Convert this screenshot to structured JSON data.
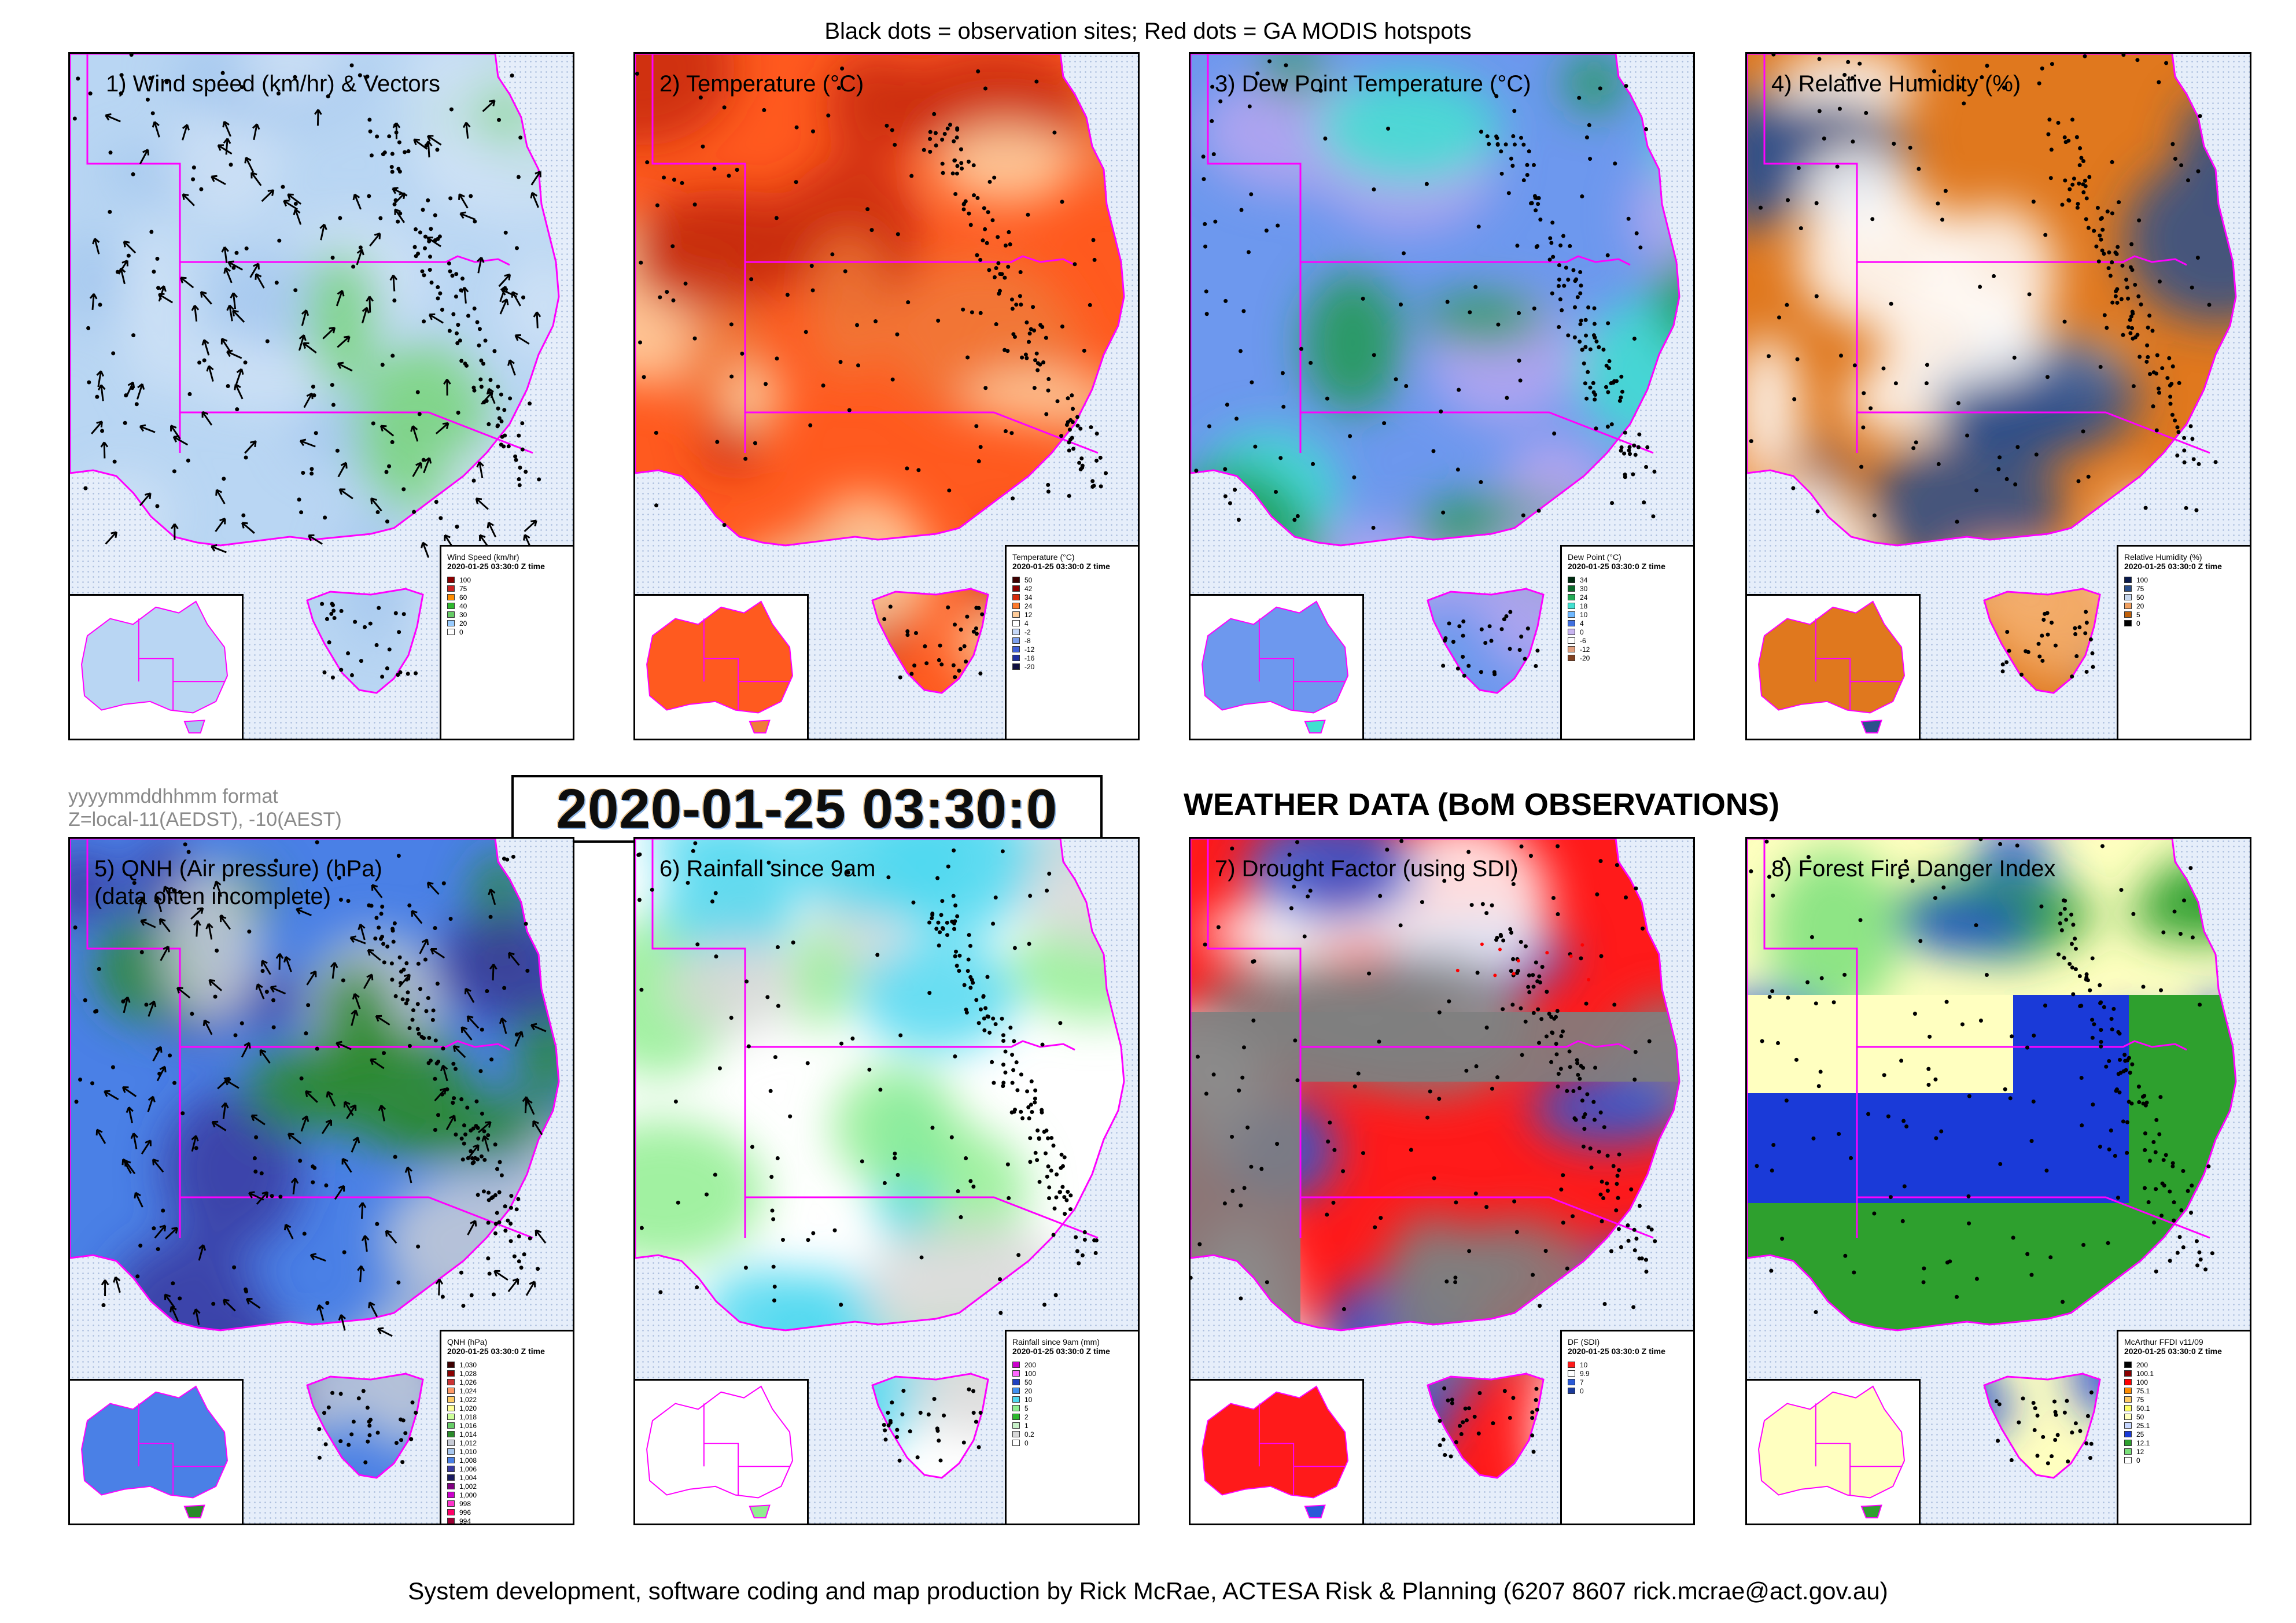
{
  "top_caption": "Black dots = observation sites; Red dots = GA MODIS hotspots",
  "bottom_caption": "System development, software coding and map production by Rick McRae, ACTESA Risk & Planning (6207 8607 rick.mcrae@act.gov.au)",
  "format_note": "yyyymmddhhmm format",
  "zone_note": "Z=local-11(AEDST), -10(AEST)",
  "datetime_stamp": "2020-01-25 03:30:0",
  "main_heading": "WEATHER DATA (BoM OBSERVATIONS)",
  "legend_time": "2020-01-25 03:30:0 Z time",
  "colors": {
    "state_border": "#ff00ff",
    "coast_line": "#ff00ff",
    "site_dot": "#000000",
    "hotspot_dot": "#ff0000"
  },
  "panels": [
    {
      "title": "1) Wind speed (km/hr) & Vectors",
      "subtitle": "",
      "legend_title": "Wind Speed (km/hr)",
      "fills": [
        "#b9d6f3",
        "#cfe2f6",
        "#a6c8ee",
        "#7ad67a"
      ],
      "legend": [
        {
          "value": "100",
          "color": "#8b0000"
        },
        {
          "value": "75",
          "color": "#cc2222"
        },
        {
          "value": "60",
          "color": "#ff8c00"
        },
        {
          "value": "40",
          "color": "#2eb82e"
        },
        {
          "value": "30",
          "color": "#66cc66"
        },
        {
          "value": "20",
          "color": "#99ccff"
        },
        {
          "value": "0",
          "color": "#ffffff"
        }
      ]
    },
    {
      "title": "2) Temperature (°C)",
      "subtitle": "",
      "legend_title": "Temperature (°C)",
      "fills": [
        "#ff5a1f",
        "#c82a0a",
        "#f07a3a",
        "#ffd6a8"
      ],
      "legend": [
        {
          "value": "50",
          "color": "#3d0000"
        },
        {
          "value": "42",
          "color": "#8b0000"
        },
        {
          "value": "34",
          "color": "#d62a0a"
        },
        {
          "value": "24",
          "color": "#ff7a2a"
        },
        {
          "value": "12",
          "color": "#ffcc99"
        },
        {
          "value": "4",
          "color": "#ffffff"
        },
        {
          "value": "-2",
          "color": "#c6d8f7"
        },
        {
          "value": "-8",
          "color": "#7da0ee"
        },
        {
          "value": "-12",
          "color": "#4060d8"
        },
        {
          "value": "-16",
          "color": "#2030a0"
        },
        {
          "value": "-20",
          "color": "#101040"
        }
      ]
    },
    {
      "title": "3) Dew Point Temperature (°C)",
      "subtitle": "",
      "legend_title": "Dew Point (°C)",
      "fills": [
        "#6d98ee",
        "#b7a6f0",
        "#40e0d0",
        "#1e9a50"
      ],
      "legend": [
        {
          "value": "34",
          "color": "#002a10"
        },
        {
          "value": "30",
          "color": "#0a6a2a"
        },
        {
          "value": "24",
          "color": "#22aa55"
        },
        {
          "value": "18",
          "color": "#40e0d0"
        },
        {
          "value": "10",
          "color": "#6fb8ff"
        },
        {
          "value": "4",
          "color": "#4070e0"
        },
        {
          "value": "0",
          "color": "#c8b4f0"
        },
        {
          "value": "-6",
          "color": "#ffffff"
        },
        {
          "value": "-12",
          "color": "#e0a080"
        },
        {
          "value": "-20",
          "color": "#804020"
        }
      ]
    },
    {
      "title": "4) Relative Humidity (%)",
      "subtitle": "",
      "legend_title": "Relative Humidity (%)",
      "fills": [
        "#e0781e",
        "#f4b070",
        "#2c4f8c",
        "#ffffff"
      ],
      "legend": [
        {
          "value": "100",
          "color": "#0a1a4a"
        },
        {
          "value": "75",
          "color": "#2a4f8c"
        },
        {
          "value": "50",
          "color": "#c8d8ee"
        },
        {
          "value": "20",
          "color": "#f0a060"
        },
        {
          "value": "5",
          "color": "#c0600a"
        },
        {
          "value": "0",
          "color": "#000000"
        }
      ]
    },
    {
      "title": "5) QNH (Air pressure) (hPa)",
      "subtitle": "(data often incomplete)",
      "legend_title": "QNH (hPa)",
      "fills": [
        "#4a80e6",
        "#c8ccd6",
        "#2a8a2a",
        "#3a3aa0"
      ],
      "legend": [
        {
          "value": "1,030",
          "color": "#3d0000"
        },
        {
          "value": "1,028",
          "color": "#8b0000"
        },
        {
          "value": "1,026",
          "color": "#cc3333"
        },
        {
          "value": "1,024",
          "color": "#ff9966"
        },
        {
          "value": "1,022",
          "color": "#ffcc66"
        },
        {
          "value": "1,020",
          "color": "#ffff99"
        },
        {
          "value": "1,018",
          "color": "#ccff99"
        },
        {
          "value": "1,016",
          "color": "#66cc66"
        },
        {
          "value": "1,014",
          "color": "#2a8a2a"
        },
        {
          "value": "1,012",
          "color": "#c8ccd6"
        },
        {
          "value": "1,010",
          "color": "#a8c8f0"
        },
        {
          "value": "1,008",
          "color": "#4a80e6"
        },
        {
          "value": "1,006",
          "color": "#3a3aa0"
        },
        {
          "value": "1,004",
          "color": "#1a1a60"
        },
        {
          "value": "1,002",
          "color": "#800080"
        },
        {
          "value": "1,000",
          "color": "#cc00cc"
        },
        {
          "value": "998",
          "color": "#ff33cc"
        },
        {
          "value": "996",
          "color": "#ff0066"
        },
        {
          "value": "994",
          "color": "#990033"
        }
      ]
    },
    {
      "title": "6) Rainfall since 9am",
      "subtitle": "",
      "legend_title": "Rainfall since 9am (mm)",
      "fills": [
        "#ffffff",
        "#d8d8d8",
        "#90ee90",
        "#4fd8f0"
      ],
      "legend": [
        {
          "value": "200",
          "color": "#cc00cc"
        },
        {
          "value": "100",
          "color": "#ff66ff"
        },
        {
          "value": "50",
          "color": "#2040c0"
        },
        {
          "value": "20",
          "color": "#4090f0"
        },
        {
          "value": "10",
          "color": "#4fd8f0"
        },
        {
          "value": "5",
          "color": "#90ee90"
        },
        {
          "value": "2",
          "color": "#2eb82e"
        },
        {
          "value": "1",
          "color": "#c8f0c8"
        },
        {
          "value": "0.2",
          "color": "#d8d8d8"
        },
        {
          "value": "0",
          "color": "#ffffff"
        }
      ]
    },
    {
      "title": "7) Drought Factor (using SDI)",
      "subtitle": "",
      "legend_title": "DF (SDI)",
      "fills": [
        "#ff1a1a",
        "#808080",
        "#2a5ad8",
        "#ffffff"
      ],
      "legend": [
        {
          "value": "10",
          "color": "#ff1a1a"
        },
        {
          "value": "9.9",
          "color": "#ffffff"
        },
        {
          "value": "7",
          "color": "#2a5ad8"
        },
        {
          "value": "0",
          "color": "#1a3a9a"
        }
      ]
    },
    {
      "title": "8) Forest Fire Danger Index",
      "subtitle": "",
      "legend_title": "McArthur FFDI v11/09",
      "fills": [
        "#ffffc0",
        "#1a3ad8",
        "#2ea02e",
        "#7ae07a"
      ],
      "legend": [
        {
          "value": "200",
          "color": "#000000"
        },
        {
          "value": "100.1",
          "color": "#8b0000"
        },
        {
          "value": "100",
          "color": "#ff0000"
        },
        {
          "value": "75.1",
          "color": "#ff8c00"
        },
        {
          "value": "75",
          "color": "#ffcc66"
        },
        {
          "value": "50.1",
          "color": "#ffff66"
        },
        {
          "value": "50",
          "color": "#ffffc0"
        },
        {
          "value": "25.1",
          "color": "#c8d8ff"
        },
        {
          "value": "25",
          "color": "#1a3ad8"
        },
        {
          "value": "12.1",
          "color": "#2ea02e"
        },
        {
          "value": "12",
          "color": "#7ae07a"
        },
        {
          "value": "0",
          "color": "#ffffff"
        }
      ]
    }
  ]
}
